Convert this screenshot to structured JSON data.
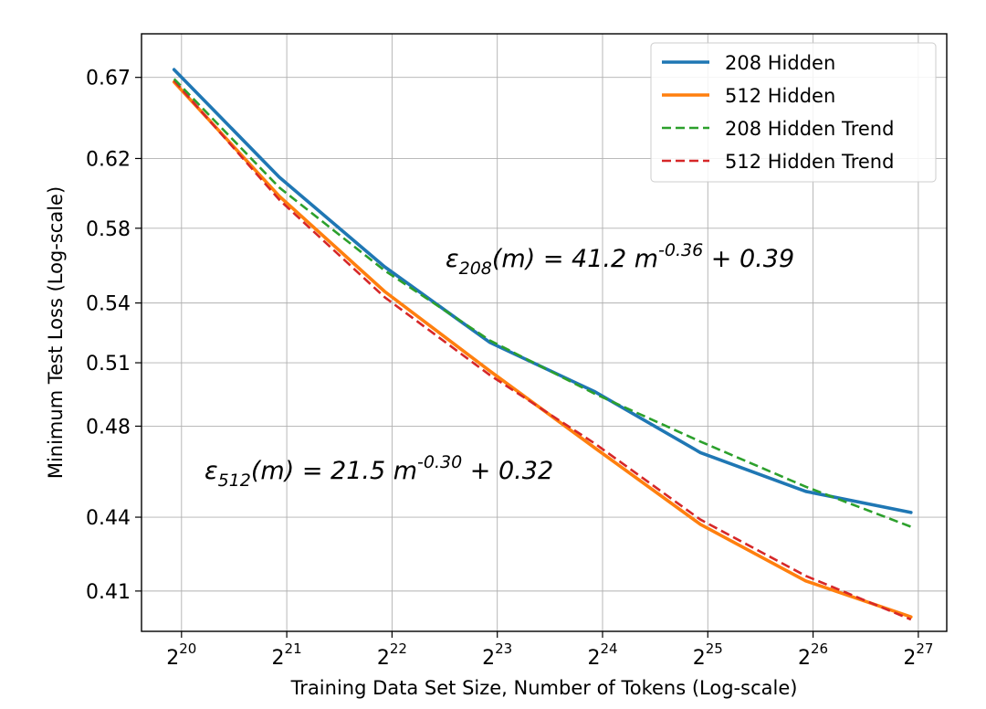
{
  "chart_data": {
    "type": "line",
    "title": "",
    "xlabel": "Training Data Set Size, Number of Tokens (Log-scale)",
    "ylabel": "Minimum Test Loss (Log-scale)",
    "x_scale": "log2",
    "y_scale": "log",
    "x_ticks": [
      {
        "base": "2",
        "exp": "20",
        "value": 20
      },
      {
        "base": "2",
        "exp": "21",
        "value": 21
      },
      {
        "base": "2",
        "exp": "22",
        "value": 22
      },
      {
        "base": "2",
        "exp": "23",
        "value": 23
      },
      {
        "base": "2",
        "exp": "24",
        "value": 24
      },
      {
        "base": "2",
        "exp": "25",
        "value": 25
      },
      {
        "base": "2",
        "exp": "26",
        "value": 26
      },
      {
        "base": "2",
        "exp": "27",
        "value": 27
      }
    ],
    "y_ticks": [
      {
        "label": "0.41",
        "value": 0.41
      },
      {
        "label": "0.44",
        "value": 0.44
      },
      {
        "label": "0.48",
        "value": 0.48
      },
      {
        "label": "0.51",
        "value": 0.51
      },
      {
        "label": "0.54",
        "value": 0.54
      },
      {
        "label": "0.58",
        "value": 0.58
      },
      {
        "label": "0.62",
        "value": 0.62
      },
      {
        "label": "0.67",
        "value": 0.67
      }
    ],
    "xlim": [
      19.62,
      27.27
    ],
    "ylim": [
      0.3945,
      0.6985
    ],
    "grid": true,
    "legend_position": "top-right",
    "series": [
      {
        "name": "208 Hidden",
        "color": "#1f77b4",
        "style": "solid",
        "x": [
          19.93,
          20.93,
          21.93,
          22.93,
          23.93,
          24.93,
          25.93,
          26.93
        ],
        "y": [
          0.675,
          0.609,
          0.559,
          0.52,
          0.496,
          0.468,
          0.451,
          0.442
        ]
      },
      {
        "name": "512 Hidden",
        "color": "#ff7f0e",
        "style": "solid",
        "x": [
          19.93,
          20.93,
          21.93,
          22.93,
          23.93,
          24.93,
          25.93,
          26.93
        ],
        "y": [
          0.667,
          0.598,
          0.546,
          0.506,
          0.47,
          0.437,
          0.414,
          0.4
        ]
      },
      {
        "name": "208 Hidden Trend",
        "color": "#2ca02c",
        "style": "dashed",
        "x": [
          19.93,
          20.93,
          21.93,
          22.93,
          23.93,
          24.93,
          25.93,
          26.93
        ],
        "y": [
          0.669,
          0.603,
          0.557,
          0.521,
          0.495,
          0.473,
          0.453,
          0.436
        ]
      },
      {
        "name": "512 Hidden Trend",
        "color": "#d62728",
        "style": "dashed",
        "x": [
          19.93,
          20.93,
          21.93,
          22.93,
          23.93,
          24.93,
          25.93,
          26.93
        ],
        "y": [
          0.668,
          0.596,
          0.543,
          0.504,
          0.472,
          0.439,
          0.416,
          0.399
        ]
      }
    ],
    "annotations": [
      {
        "id": "eq208",
        "prefix": "ε",
        "sub": "208",
        "mid": "(m) = 41.2 m",
        "sup": "-0.36",
        "suffix": " + 0.39"
      },
      {
        "id": "eq512",
        "prefix": "ε",
        "sub": "512",
        "mid": "(m) = 21.5 m",
        "sup": "-0.30",
        "suffix": " + 0.32"
      }
    ]
  }
}
